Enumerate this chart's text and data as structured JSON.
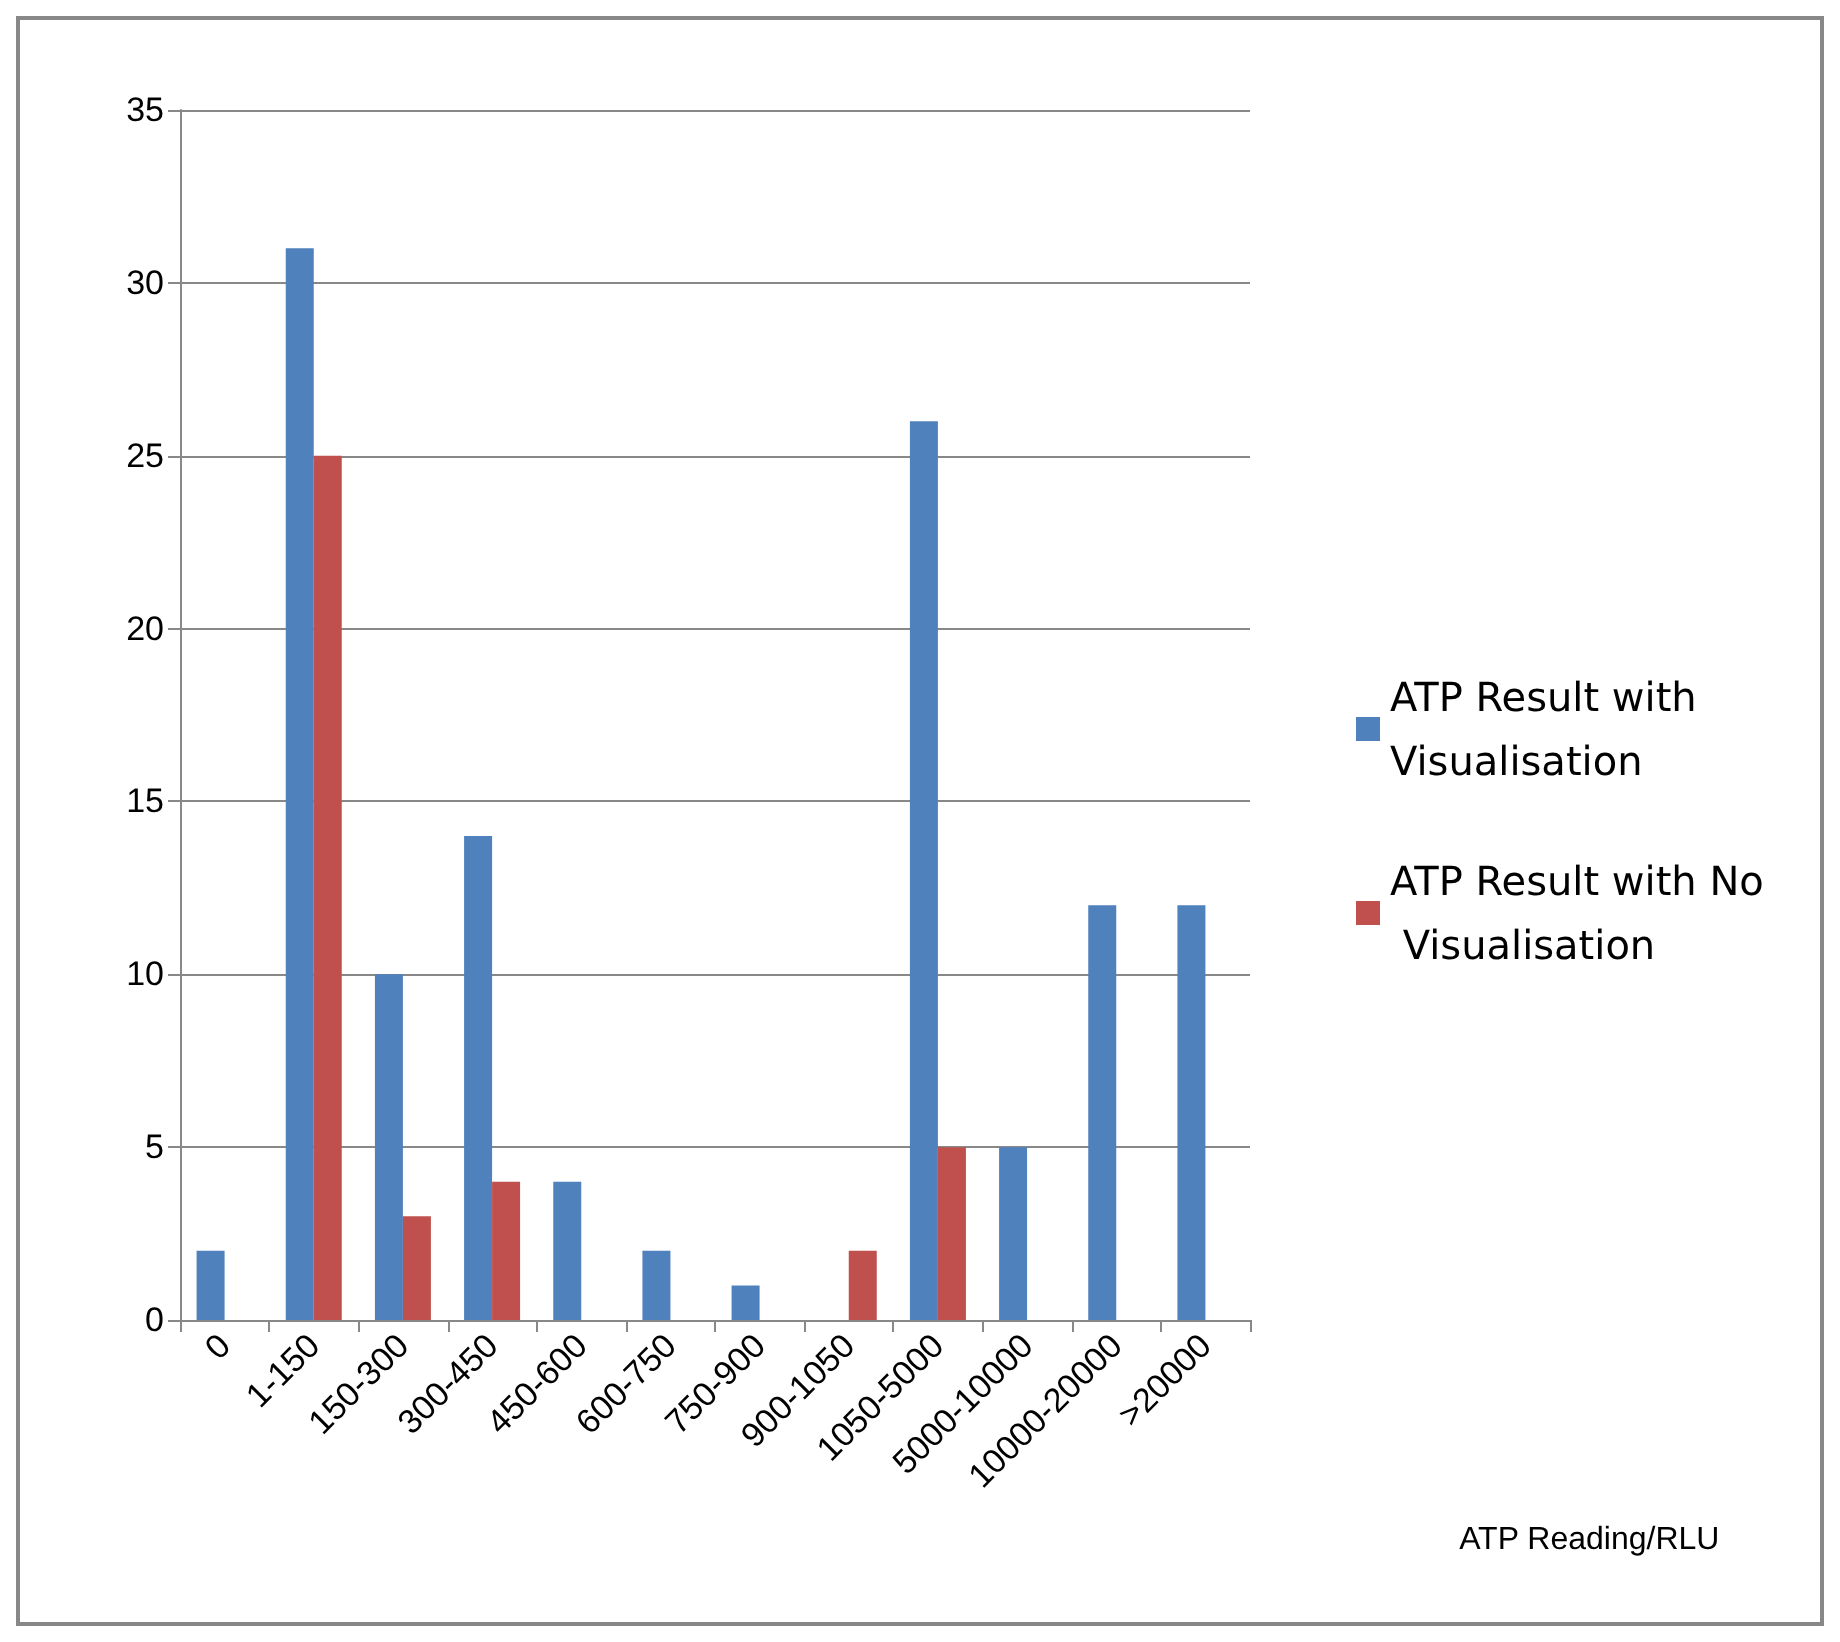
{
  "chart_data": {
    "type": "bar",
    "annotations": [
      "ATP Reading/RLU"
    ],
    "categories": [
      "0",
      "1-150",
      "150-300",
      "300-450",
      "450-600",
      "600-750",
      "750-900",
      "900-1050",
      "1050-5000",
      "5000-10000",
      "10000-20000",
      ">20000"
    ],
    "series": [
      {
        "name": "ATP Result with Visualisation",
        "color": "#4f81bd",
        "values": [
          2,
          31,
          10,
          14,
          4,
          2,
          1,
          0,
          26,
          5,
          12,
          12
        ]
      },
      {
        "name": "ATP Result with No Visualisation",
        "color": "#c0504d",
        "values": [
          0,
          25,
          3,
          4,
          0,
          0,
          0,
          2,
          5,
          0,
          0,
          0
        ]
      }
    ],
    "ylim": [
      0,
      35
    ],
    "yticks": [
      0,
      5,
      10,
      15,
      20,
      25,
      30,
      35
    ],
    "grid": "y",
    "legend": "right"
  }
}
